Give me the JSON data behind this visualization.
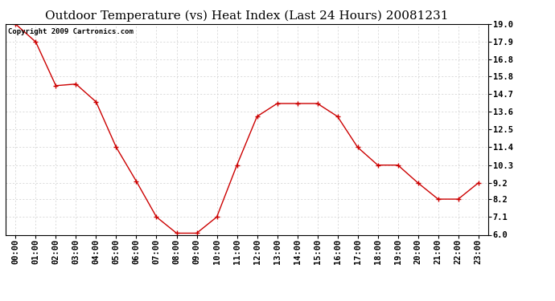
{
  "title": "Outdoor Temperature (vs) Heat Index (Last 24 Hours) 20081231",
  "copyright_text": "Copyright 2009 Cartronics.com",
  "x_labels": [
    "00:00",
    "01:00",
    "02:00",
    "03:00",
    "04:00",
    "05:00",
    "06:00",
    "07:00",
    "08:00",
    "09:00",
    "10:00",
    "11:00",
    "12:00",
    "13:00",
    "14:00",
    "15:00",
    "16:00",
    "17:00",
    "18:00",
    "19:00",
    "20:00",
    "21:00",
    "22:00",
    "23:00"
  ],
  "y_values": [
    19.0,
    17.9,
    15.2,
    15.3,
    14.2,
    11.4,
    9.3,
    7.1,
    6.1,
    6.1,
    7.1,
    10.3,
    13.3,
    14.1,
    14.1,
    14.1,
    13.3,
    11.4,
    10.3,
    10.3,
    9.2,
    8.2,
    8.2,
    9.2
  ],
  "line_color": "#cc0000",
  "marker": "+",
  "marker_size": 5,
  "marker_color": "#cc0000",
  "background_color": "#ffffff",
  "plot_bg_color": "#ffffff",
  "grid_color": "#cccccc",
  "y_min": 6.0,
  "y_max": 19.0,
  "y_ticks": [
    6.0,
    7.1,
    8.2,
    9.2,
    10.3,
    11.4,
    12.5,
    13.6,
    14.7,
    15.8,
    16.8,
    17.9,
    19.0
  ],
  "title_fontsize": 11,
  "tick_fontsize": 7.5,
  "copyright_fontsize": 6.5
}
